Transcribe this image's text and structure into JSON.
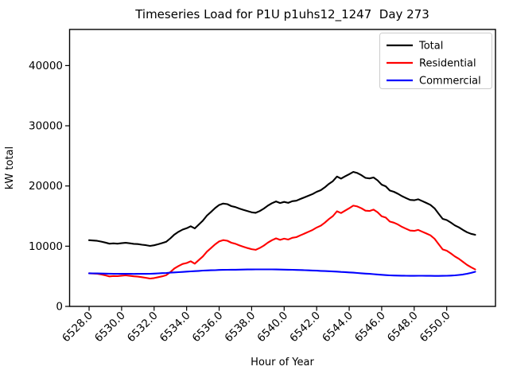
{
  "figure": {
    "title": "Timeseries Load for P1U p1uhs12_1247  Day 273",
    "xlabel": "Hour of Year",
    "ylabel": "kW total"
  },
  "chart_data": {
    "type": "line",
    "title": "Timeseries Load for P1U p1uhs12_1247  Day 273",
    "xlabel": "Hour of Year",
    "ylabel": "kW total",
    "grid": false,
    "legend_position": "upper right",
    "xlim": [
      6526.8,
      6553.0
    ],
    "ylim": [
      0,
      46000
    ],
    "x_ticks": [
      6528,
      6530,
      6532,
      6534,
      6536,
      6538,
      6540,
      6542,
      6544,
      6546,
      6548,
      6550
    ],
    "x_tick_labels": [
      "6528.0",
      "6530.0",
      "6532.0",
      "6534.0",
      "6536.0",
      "6538.0",
      "6540.0",
      "6542.0",
      "6544.0",
      "6546.0",
      "6548.0",
      "6550.0"
    ],
    "y_ticks": [
      0,
      10000,
      20000,
      30000,
      40000
    ],
    "y_tick_labels": [
      "0",
      "10000",
      "20000",
      "30000",
      "40000"
    ],
    "x_start": 6528.0,
    "x_step": 0.25,
    "series": [
      {
        "name": "Total",
        "color": "#000000",
        "values": [
          11000,
          10940,
          10890,
          10760,
          10600,
          10410,
          10470,
          10420,
          10500,
          10560,
          10480,
          10390,
          10350,
          10250,
          10160,
          10045,
          10150,
          10330,
          10520,
          10750,
          11300,
          11940,
          12380,
          12760,
          12980,
          13310,
          12960,
          13600,
          14250,
          15080,
          15690,
          16320,
          16840,
          17080,
          16980,
          16660,
          16500,
          16240,
          16020,
          15820,
          15630,
          15540,
          15840,
          16250,
          16750,
          17140,
          17430,
          17170,
          17360,
          17200,
          17480,
          17560,
          17840,
          18110,
          18390,
          18660,
          19030,
          19300,
          19770,
          20340,
          20800,
          21570,
          21230,
          21600,
          21950,
          22340,
          22150,
          21800,
          21350,
          21250,
          21420,
          20930,
          20220,
          19950,
          19250,
          19030,
          18710,
          18310,
          17990,
          17680,
          17630,
          17790,
          17490,
          17190,
          16870,
          16290,
          15400,
          14540,
          14340,
          13930,
          13460,
          13120,
          12700,
          12320,
          12060,
          11900
        ]
      },
      {
        "name": "Residential",
        "color": "#ff0000",
        "values": [
          5500,
          5460,
          5420,
          5300,
          5150,
          4980,
          5050,
          5020,
          5100,
          5150,
          5080,
          5000,
          4950,
          4850,
          4750,
          4625,
          4700,
          4850,
          5000,
          5200,
          5700,
          6300,
          6700,
          7040,
          7200,
          7490,
          7100,
          7700,
          8300,
          9100,
          9690,
          10300,
          10790,
          11010,
          10900,
          10570,
          10400,
          10130,
          9900,
          9690,
          9500,
          9400,
          9700,
          10100,
          10600,
          11000,
          11300,
          11050,
          11250,
          11100,
          11400,
          11500,
          11800,
          12100,
          12400,
          12700,
          13100,
          13400,
          13900,
          14500,
          15000,
          15800,
          15500,
          15900,
          16300,
          16740,
          16600,
          16300,
          15900,
          15850,
          16070,
          15630,
          14970,
          14750,
          14090,
          13900,
          13600,
          13210,
          12900,
          12600,
          12550,
          12700,
          12400,
          12110,
          11800,
          11230,
          10340,
          9470,
          9250,
          8810,
          8300,
          7900,
          7400,
          6900,
          6500,
          6150
        ]
      },
      {
        "name": "Commercial",
        "color": "#0000ff",
        "values": [
          5500,
          5480,
          5470,
          5460,
          5450,
          5430,
          5420,
          5400,
          5400,
          5410,
          5400,
          5390,
          5400,
          5400,
          5410,
          5420,
          5450,
          5480,
          5520,
          5550,
          5600,
          5640,
          5680,
          5720,
          5780,
          5820,
          5860,
          5900,
          5950,
          5980,
          6000,
          6020,
          6050,
          6070,
          6080,
          6090,
          6100,
          6110,
          6120,
          6130,
          6130,
          6140,
          6140,
          6150,
          6150,
          6140,
          6130,
          6120,
          6110,
          6100,
          6080,
          6060,
          6040,
          6010,
          5990,
          5960,
          5930,
          5900,
          5870,
          5840,
          5800,
          5770,
          5730,
          5700,
          5650,
          5600,
          5550,
          5500,
          5450,
          5400,
          5350,
          5300,
          5250,
          5200,
          5160,
          5130,
          5110,
          5100,
          5090,
          5080,
          5080,
          5090,
          5090,
          5080,
          5070,
          5060,
          5060,
          5070,
          5090,
          5120,
          5160,
          5220,
          5300,
          5420,
          5560,
          5750
        ]
      }
    ]
  }
}
